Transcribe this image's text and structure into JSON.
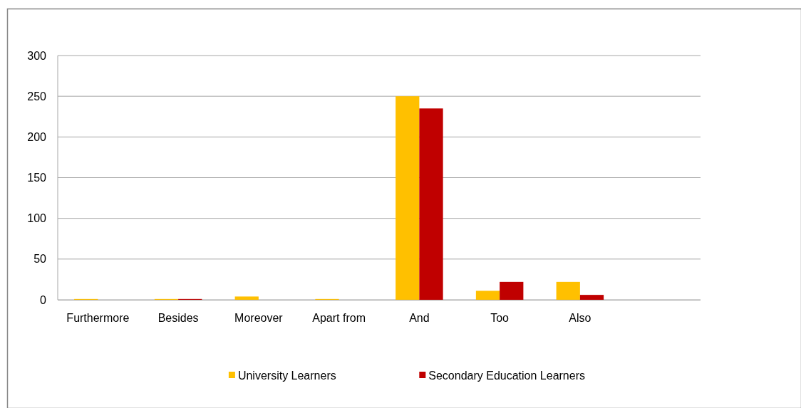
{
  "chart_data": {
    "type": "bar",
    "categories": [
      "Furthermore",
      "Besides",
      "Moreover",
      "Apart from",
      "And",
      "Too",
      "Also",
      null
    ],
    "series": [
      {
        "name": "University Learners",
        "color": "#ffc000",
        "values": [
          1,
          1,
          4,
          1,
          250,
          11,
          22,
          null
        ]
      },
      {
        "name": "Secondary Education Learners",
        "color": "#c00000",
        "values": [
          0,
          1,
          0,
          0,
          235,
          22,
          6,
          null
        ]
      }
    ],
    "ylim": [
      0,
      300
    ],
    "yticks": [
      0,
      50,
      100,
      150,
      200,
      250,
      300
    ],
    "grid": "y",
    "legend": "bottom"
  }
}
